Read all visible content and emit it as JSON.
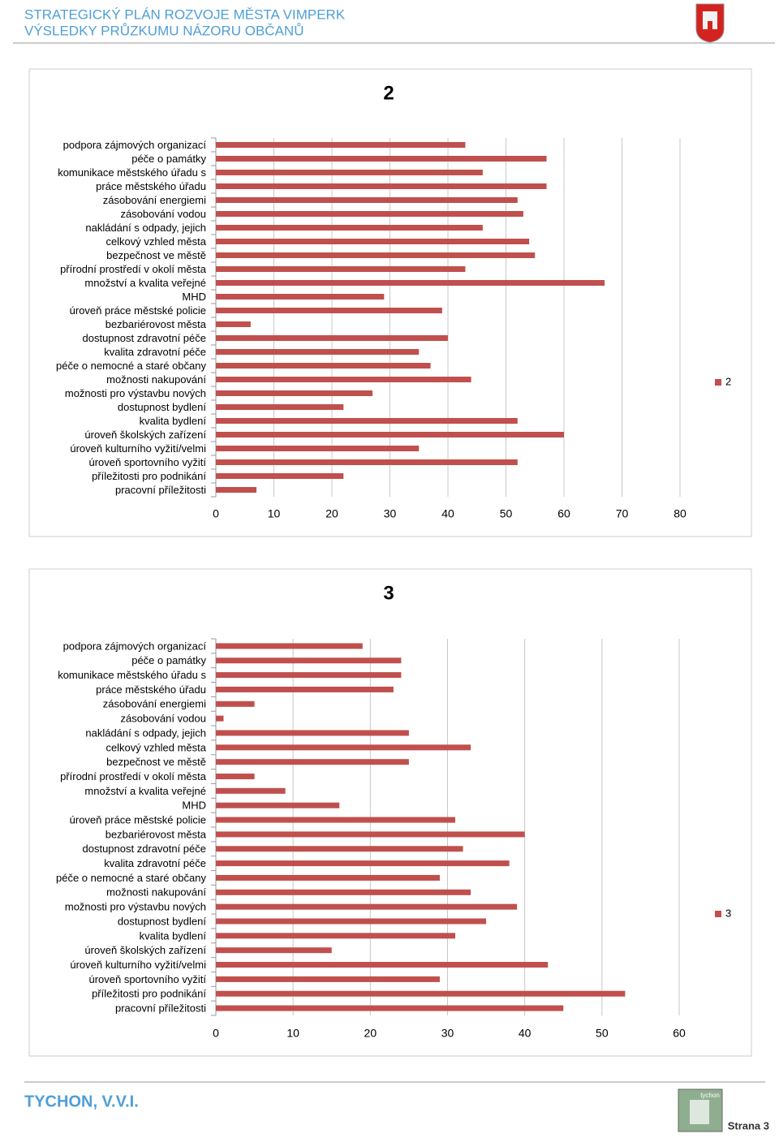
{
  "header": {
    "title": "STRATEGICKÝ PLÁN ROZVOJE MĚSTA VIMPERK",
    "subtitle": "VÝSLEDKY PRŮZKUMU NÁZORU OBČANŮ"
  },
  "chart_data": [
    {
      "type": "barh",
      "title": "2",
      "categories": [
        "podpora zájmových organizací",
        "péče o památky",
        "komunikace městského úřadu s",
        "práce městského úřadu",
        "zásobování energiemi",
        "zásobování vodou",
        "nakládání s odpady, jejich",
        "celkový vzhled města",
        "bezpečnost ve městě",
        "přírodní prostředí v okolí města",
        "množství a kvalita veřejné",
        "MHD",
        "úroveň práce městské policie",
        "bezbariérovost města",
        "dostupnost zdravotní péče",
        "kvalita zdravotní péče",
        "péče o nemocné a staré občany",
        "možnosti nakupování",
        "možnosti pro výstavbu nových",
        "dostupnost bydlení",
        "kvalita bydlení",
        "úroveň školských zařízení",
        "úroveň kulturního vyžití/velmi",
        "úroveň sportovního vyžití",
        "příležitosti pro podnikání",
        "pracovní příležitosti"
      ],
      "series": [
        {
          "name": "2",
          "color": "#c0504d",
          "values": [
            43,
            57,
            46,
            57,
            52,
            53,
            46,
            54,
            55,
            43,
            67,
            29,
            39,
            6,
            40,
            35,
            37,
            44,
            27,
            22,
            52,
            60,
            35,
            52,
            22,
            7
          ]
        }
      ],
      "xlim": [
        0,
        80
      ],
      "xticks": [
        0,
        10,
        20,
        30,
        40,
        50,
        60,
        70,
        80
      ],
      "grid": true,
      "legend": "right"
    },
    {
      "type": "barh",
      "title": "3",
      "categories": [
        "podpora zájmových organizací",
        "péče o památky",
        "komunikace městského úřadu s",
        "práce městského úřadu",
        "zásobování energiemi",
        "zásobování vodou",
        "nakládání s odpady, jejich",
        "celkový vzhled města",
        "bezpečnost ve městě",
        "přírodní prostředí v okolí města",
        "množství a kvalita veřejné",
        "MHD",
        "úroveň práce městské policie",
        "bezbariérovost města",
        "dostupnost zdravotní péče",
        "kvalita zdravotní péče",
        "péče o nemocné a staré občany",
        "možnosti nakupování",
        "možnosti pro výstavbu nových",
        "dostupnost bydlení",
        "kvalita bydlení",
        "úroveň školských zařízení",
        "úroveň kulturního vyžití/velmi",
        "úroveň sportovního vyžití",
        "příležitosti pro podnikání",
        "pracovní příležitosti"
      ],
      "series": [
        {
          "name": "3",
          "color": "#c0504d",
          "values": [
            19,
            24,
            24,
            23,
            5,
            1,
            25,
            33,
            25,
            5,
            9,
            16,
            31,
            40,
            32,
            38,
            29,
            33,
            39,
            35,
            31,
            15,
            43,
            29,
            53,
            45
          ]
        }
      ],
      "xlim": [
        0,
        60
      ],
      "xticks": [
        0,
        10,
        20,
        30,
        40,
        50,
        60
      ],
      "grid": true,
      "legend": "right"
    }
  ],
  "footer": {
    "organization": "TYCHON, V.V.I.",
    "page": "Strana 3",
    "logo_text": "tychon"
  }
}
